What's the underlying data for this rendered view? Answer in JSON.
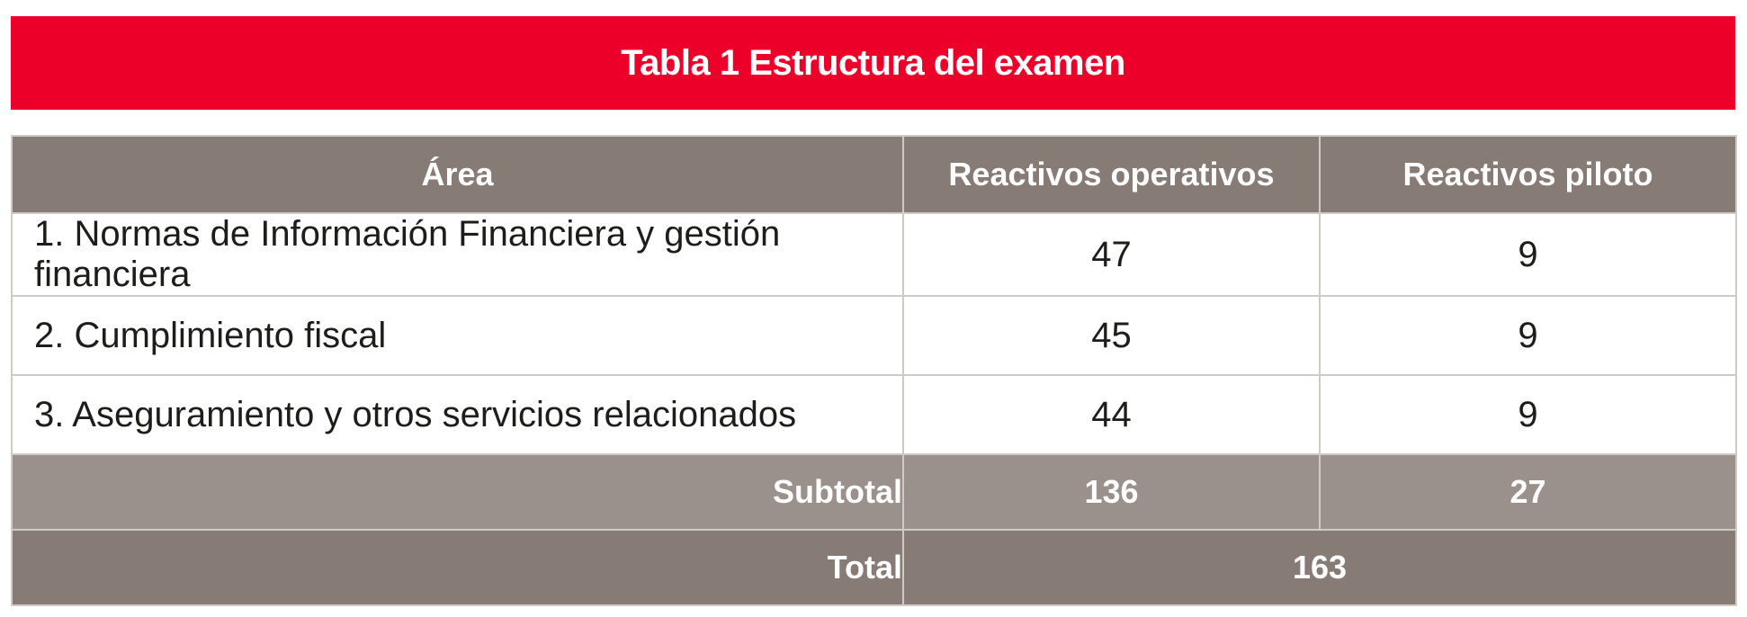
{
  "title": "Tabla 1 Estructura del examen",
  "table": {
    "headers": [
      "Área",
      "Reactivos operativos",
      "Reactivos piloto"
    ],
    "rows": [
      {
        "area": "1. Normas de Información Financiera y gestión financiera",
        "operativos": "47",
        "piloto": "9"
      },
      {
        "area": "2. Cumplimiento fiscal",
        "operativos": "45",
        "piloto": "9"
      },
      {
        "area": "3. Aseguramiento y otros servicios relacionados",
        "operativos": "44",
        "piloto": "9"
      }
    ],
    "subtotal": {
      "label": "Subtotal",
      "operativos": "136",
      "piloto": "27"
    },
    "total": {
      "label": "Total",
      "value": "163"
    }
  },
  "colors": {
    "title_bg": "#ec0029",
    "header_bg": "#877b76",
    "subtotal_bg": "#9a908c",
    "total_bg": "#877b76"
  }
}
